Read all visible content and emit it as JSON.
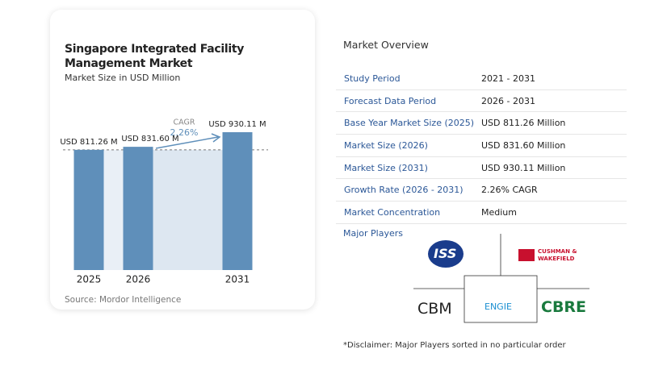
{
  "chart_data": {
    "type": "bar",
    "title": "Singapore Integrated Facility Management Market",
    "subtitle": "Market Size in USD Million",
    "categories": [
      "2025",
      "2026",
      "2031"
    ],
    "values": [
      811.26,
      831.6,
      930.11
    ],
    "value_labels": [
      "USD 811.26 M",
      "USD 831.60 M",
      "USD 930.11 M"
    ],
    "color": "#5f8fba",
    "annotations": [
      "CAGR",
      "2.26%"
    ],
    "source": "Source:  Mordor Intelligence"
  },
  "overview": {
    "title": "Market Overview",
    "rows": [
      [
        "Study Period",
        "2021 - 2031"
      ],
      [
        "Forecast Data Period",
        "2026 - 2031"
      ],
      [
        "Base Year Market Size (2025)",
        "USD 811.26 Million"
      ],
      [
        "Market Size (2026)",
        "USD 831.60 Million"
      ],
      [
        "Market Size (2031)",
        "USD 930.11 Million"
      ],
      [
        "Growth Rate (2026 - 2031)",
        "2.26% CAGR"
      ],
      [
        "Market Concentration",
        "Medium"
      ]
    ]
  },
  "players": {
    "title": "Major Players",
    "names": [
      "ISS",
      "CUSHMAN & WAKEFIELD",
      "CBM",
      "ENGIE",
      "CBRE"
    ]
  },
  "disclaimer": "*Disclaimer: Major Players sorted in no particular order"
}
